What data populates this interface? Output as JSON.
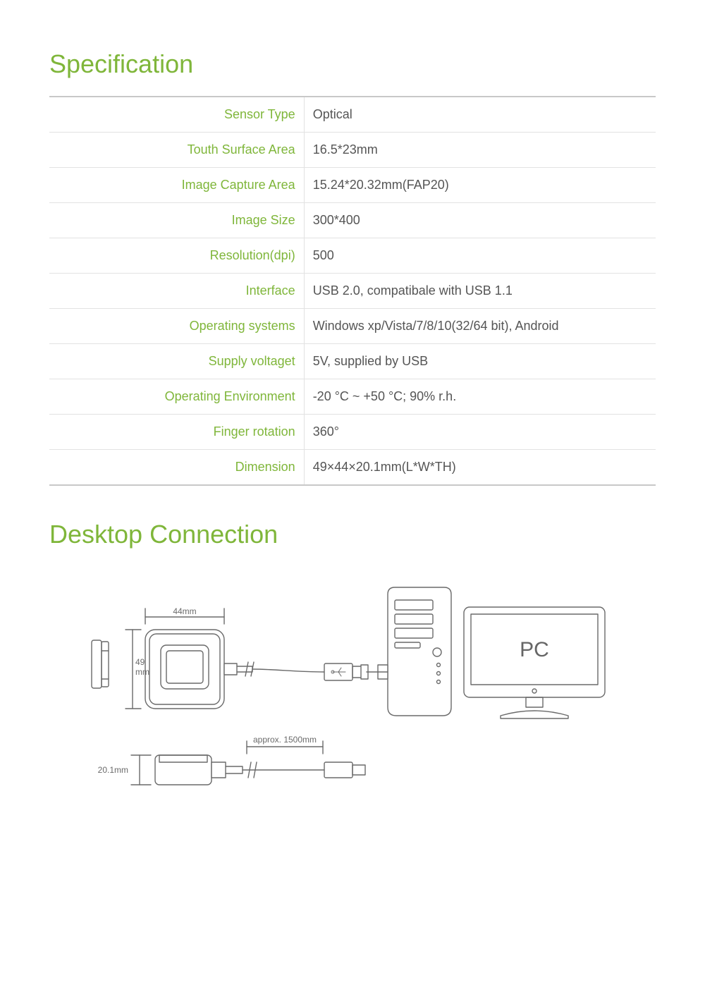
{
  "colors": {
    "accent": "#7fb63a",
    "heading": "#7fb63a",
    "text": "#555555",
    "border_outer": "#c8c8c8",
    "border_inner": "#e2e2e2",
    "diagram_stroke": "#6a6a6a",
    "diagram_fill": "#ffffff"
  },
  "sections": {
    "spec_title": "Specification",
    "conn_title": "Desktop Connection"
  },
  "spec_table": {
    "label_color": "#7fb63a",
    "value_color": "#555555",
    "rows": [
      {
        "label": "Sensor Type",
        "value": "Optical"
      },
      {
        "label": "Touth Surface Area",
        "value": "16.5*23mm"
      },
      {
        "label": "Image Capture Area",
        "value": "15.24*20.32mm(FAP20)"
      },
      {
        "label": "Image Size",
        "value": "300*400"
      },
      {
        "label": "Resolution(dpi)",
        "value": "500"
      },
      {
        "label": "Interface",
        "value": "USB 2.0, compatibale with USB 1.1"
      },
      {
        "label": "Operating systems",
        "value": "Windows xp/Vista/7/8/10(32/64 bit), Android"
      },
      {
        "label": "Supply voltaget",
        "value": "5V, supplied by USB"
      },
      {
        "label": "Operating Environment",
        "value": "-20 °C ~ +50 °C; 90% r.h."
      },
      {
        "label": "Finger rotation",
        "value": "360°"
      },
      {
        "label": "Dimension",
        "value": "49×44×20.1mm(L*W*TH)"
      }
    ]
  },
  "diagram": {
    "pc_label": "PC",
    "dim_width": "44mm",
    "dim_height_label": "49",
    "dim_height_unit": "mm",
    "dim_thickness": "20.1mm",
    "cable_len": "approx.  1500mm",
    "usb_icon": "USB",
    "stroke_color": "#6a6a6a",
    "stroke_width": 1.4,
    "font_size_dim": 12,
    "font_size_pc": 30
  }
}
